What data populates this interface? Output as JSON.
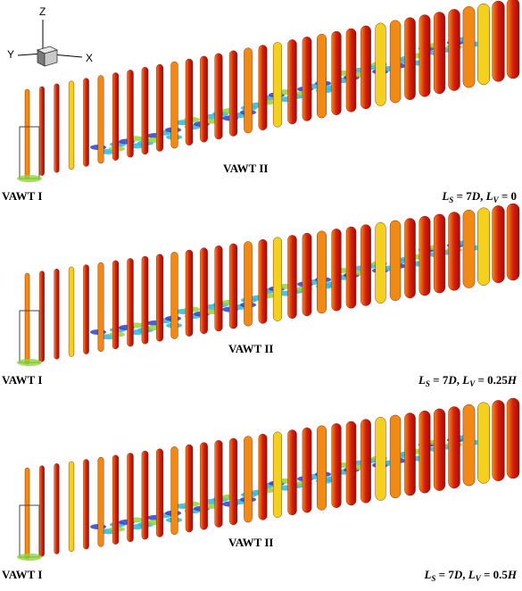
{
  "axes_triad": {
    "z": "Z",
    "y": "Y",
    "x": "X"
  },
  "panels": [
    {
      "turbine1": "VAWT I",
      "turbine2": "VAWT II",
      "ls_sym": "L",
      "ls_sub": "S",
      "ls_val": " = 7",
      "d_sym": "D",
      "lv_sym": "L",
      "lv_sub": "V",
      "lv_val": " = 0",
      "h_sym": ""
    },
    {
      "turbine1": "VAWT I",
      "turbine2": "VAWT II",
      "ls_sym": "L",
      "ls_sub": "S",
      "ls_val": " = 7",
      "d_sym": "D",
      "lv_sym": "L",
      "lv_sub": "V",
      "lv_val": " = 0.25",
      "h_sym": "H"
    },
    {
      "turbine1": "VAWT I",
      "turbine2": "VAWT II",
      "ls_sym": "L",
      "ls_sub": "S",
      "ls_val": " = 7",
      "d_sym": "D",
      "lv_sym": "L",
      "lv_sub": "V",
      "lv_val": " = 0.5",
      "h_sym": "H"
    }
  ],
  "colors": {
    "red": "#d81e10",
    "orange": "#f08a14",
    "yellow": "#f2d21c",
    "green": "#8fd63a",
    "cyan": "#27b8e0",
    "blue": "#2c3fd0"
  }
}
